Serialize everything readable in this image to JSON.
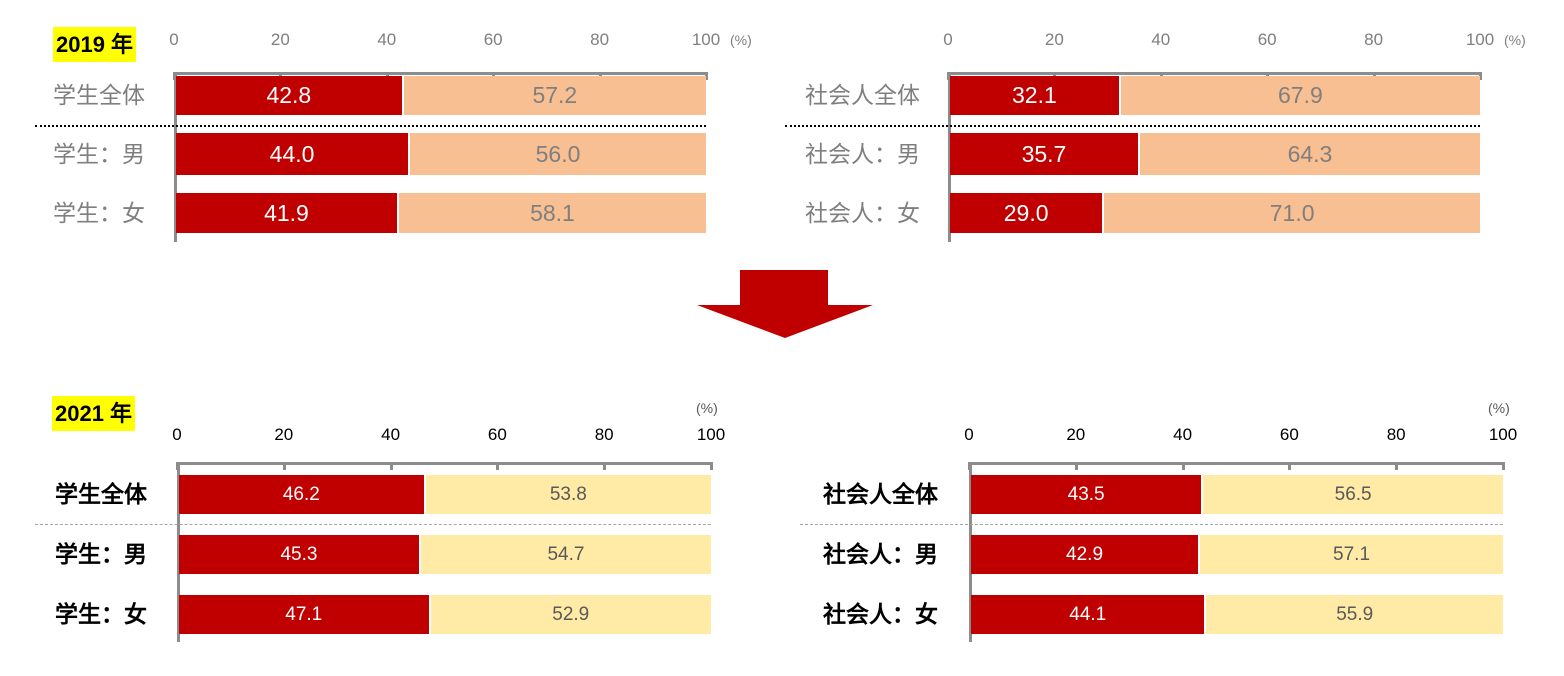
{
  "colors": {
    "primary": "#c00000",
    "secondary_2019": "#f8bf93",
    "secondary_2021": "#ffeaa6",
    "arrow": "#c00000",
    "year_bg": "#ffff00"
  },
  "chart_data": [
    {
      "type": "bar",
      "stacked": true,
      "orientation": "horizontal",
      "year_label": "2019 年",
      "unit": "(%)",
      "xlim": [
        0,
        100
      ],
      "ticks": [
        "0",
        "20",
        "40",
        "60",
        "80",
        "100"
      ],
      "categories": [
        "学生全体",
        "学生：男",
        "学生：女"
      ],
      "series": [
        {
          "values": [
            42.8,
            44.0,
            41.9
          ],
          "labels": [
            "42.8",
            "44.0",
            "41.9"
          ]
        },
        {
          "values": [
            57.2,
            56.0,
            58.1
          ],
          "labels": [
            "57.2",
            "56.0",
            "58.1"
          ]
        }
      ]
    },
    {
      "type": "bar",
      "stacked": true,
      "orientation": "horizontal",
      "unit": "(%)",
      "xlim": [
        0,
        100
      ],
      "ticks": [
        "0",
        "20",
        "40",
        "60",
        "80",
        "100"
      ],
      "categories": [
        "社会人全体",
        "社会人：男",
        "社会人：女"
      ],
      "series": [
        {
          "values": [
            32.1,
            35.7,
            29.0
          ],
          "labels": [
            "32.1",
            "35.7",
            "29.0"
          ]
        },
        {
          "values": [
            67.9,
            64.3,
            71.0
          ],
          "labels": [
            "67.9",
            "64.3",
            "71.0"
          ]
        }
      ]
    },
    {
      "type": "bar",
      "stacked": true,
      "orientation": "horizontal",
      "year_label": "2021 年",
      "unit": "(%)",
      "xlim": [
        0,
        100
      ],
      "ticks": [
        "0",
        "20",
        "40",
        "60",
        "80",
        "100"
      ],
      "categories": [
        "学生全体",
        "学生：男",
        "学生：女"
      ],
      "series": [
        {
          "values": [
            46.2,
            45.3,
            47.1
          ],
          "labels": [
            "46.2",
            "45.3",
            "47.1"
          ]
        },
        {
          "values": [
            53.8,
            54.7,
            52.9
          ],
          "labels": [
            "53.8",
            "54.7",
            "52.9"
          ]
        }
      ]
    },
    {
      "type": "bar",
      "stacked": true,
      "orientation": "horizontal",
      "unit": "(%)",
      "xlim": [
        0,
        100
      ],
      "ticks": [
        "0",
        "20",
        "40",
        "60",
        "80",
        "100"
      ],
      "categories": [
        "社会人全体",
        "社会人：男",
        "社会人：女"
      ],
      "series": [
        {
          "values": [
            43.5,
            42.9,
            44.1
          ],
          "labels": [
            "43.5",
            "42.9",
            "44.1"
          ]
        },
        {
          "values": [
            56.5,
            57.1,
            55.9
          ],
          "labels": [
            "56.5",
            "57.1",
            "55.9"
          ]
        }
      ]
    }
  ]
}
